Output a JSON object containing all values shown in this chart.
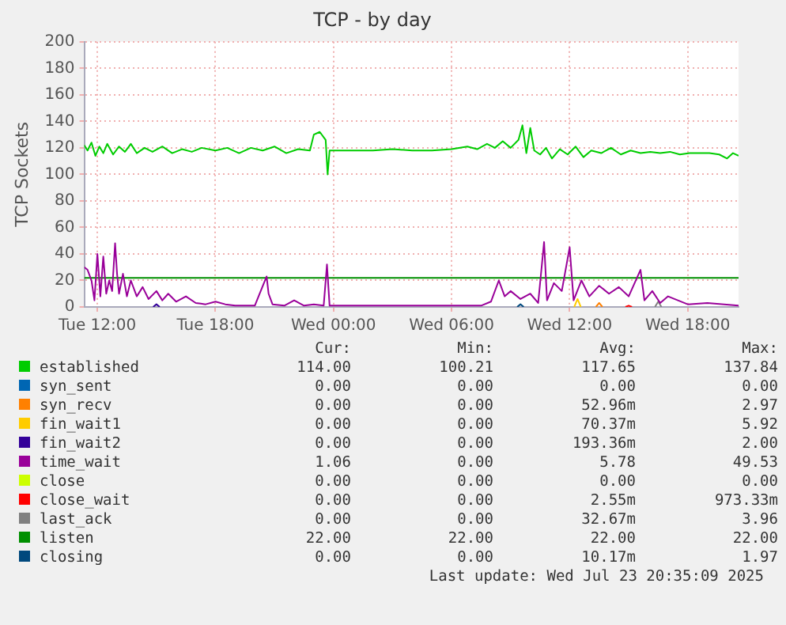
{
  "chart_data": {
    "type": "line",
    "title": "TCP - by day",
    "ylabel": "TCP Sockets",
    "xlim": [
      "2025-07-22T11:20",
      "2025-07-23T20:35"
    ],
    "xticks": [
      {
        "value": "2025-07-22T12:00",
        "label": "Tue 12:00"
      },
      {
        "value": "2025-07-22T18:00",
        "label": "Tue 18:00"
      },
      {
        "value": "2025-07-23T00:00",
        "label": "Wed 00:00"
      },
      {
        "value": "2025-07-23T06:00",
        "label": "Wed 06:00"
      },
      {
        "value": "2025-07-23T12:00",
        "label": "Wed 12:00"
      },
      {
        "value": "2025-07-23T18:00",
        "label": "Wed 18:00"
      }
    ],
    "ylim": [
      0,
      200
    ],
    "yticks": [
      0,
      20,
      40,
      60,
      80,
      100,
      120,
      140,
      160,
      180,
      200
    ],
    "grid": true,
    "legend": "bottom",
    "marker": "none",
    "line_style": "solid",
    "series": [
      {
        "name": "established",
        "color": "#00cc00",
        "x": [
          "2025-07-22T11:20",
          "2025-07-22T11:30",
          "2025-07-22T11:42",
          "2025-07-22T11:54",
          "2025-07-22T12:06",
          "2025-07-22T12:18",
          "2025-07-22T12:30",
          "2025-07-22T12:48",
          "2025-07-22T13:06",
          "2025-07-22T13:24",
          "2025-07-22T13:42",
          "2025-07-22T14:00",
          "2025-07-22T14:24",
          "2025-07-22T14:48",
          "2025-07-22T15:18",
          "2025-07-22T15:48",
          "2025-07-22T16:18",
          "2025-07-22T16:48",
          "2025-07-22T17:18",
          "2025-07-22T18:00",
          "2025-07-22T18:36",
          "2025-07-22T19:12",
          "2025-07-22T19:48",
          "2025-07-22T20:24",
          "2025-07-22T21:00",
          "2025-07-22T21:36",
          "2025-07-22T22:12",
          "2025-07-22T22:48",
          "2025-07-22T23:00",
          "2025-07-22T23:18",
          "2025-07-22T23:36",
          "2025-07-22T23:42",
          "2025-07-22T23:48",
          "2025-07-23T00:00",
          "2025-07-23T01:00",
          "2025-07-23T02:00",
          "2025-07-23T03:00",
          "2025-07-23T04:00",
          "2025-07-23T05:00",
          "2025-07-23T06:00",
          "2025-07-23T06:48",
          "2025-07-23T07:18",
          "2025-07-23T07:48",
          "2025-07-23T08:12",
          "2025-07-23T08:36",
          "2025-07-23T09:00",
          "2025-07-23T09:24",
          "2025-07-23T09:36",
          "2025-07-23T09:48",
          "2025-07-23T10:00",
          "2025-07-23T10:12",
          "2025-07-23T10:30",
          "2025-07-23T10:48",
          "2025-07-23T11:06",
          "2025-07-23T11:30",
          "2025-07-23T11:54",
          "2025-07-23T12:18",
          "2025-07-23T12:42",
          "2025-07-23T13:06",
          "2025-07-23T13:36",
          "2025-07-23T14:06",
          "2025-07-23T14:36",
          "2025-07-23T15:06",
          "2025-07-23T15:36",
          "2025-07-23T16:06",
          "2025-07-23T16:36",
          "2025-07-23T17:06",
          "2025-07-23T17:36",
          "2025-07-23T18:06",
          "2025-07-23T18:36",
          "2025-07-23T19:06",
          "2025-07-23T19:36",
          "2025-07-23T20:00",
          "2025-07-23T20:18",
          "2025-07-23T20:35"
        ],
        "values": [
          122,
          118,
          124,
          114,
          121,
          116,
          123,
          115,
          121,
          117,
          123,
          116,
          120,
          117,
          121,
          116,
          119,
          117,
          120,
          118,
          120,
          116,
          120,
          118,
          121,
          116,
          119,
          118,
          130,
          132,
          126,
          100,
          118,
          118,
          118,
          118,
          119,
          118,
          118,
          119,
          121,
          119,
          123,
          120,
          125,
          120,
          126,
          137,
          116,
          135,
          118,
          115,
          120,
          112,
          119,
          115,
          121,
          113,
          118,
          116,
          120,
          115,
          118,
          116,
          117,
          116,
          117,
          115,
          116,
          116,
          116,
          115,
          112,
          116,
          114
        ]
      },
      {
        "name": "syn_sent",
        "color": "#0066b3"
      },
      {
        "name": "syn_recv",
        "color": "#ff8000",
        "x": [
          "2025-07-23T13:20",
          "2025-07-23T13:30",
          "2025-07-23T13:40"
        ],
        "values": [
          0,
          3,
          0
        ]
      },
      {
        "name": "fin_wait1",
        "color": "#ffcc00",
        "x": [
          "2025-07-23T12:14",
          "2025-07-23T12:24",
          "2025-07-23T12:34"
        ],
        "values": [
          0,
          6,
          0
        ]
      },
      {
        "name": "fin_wait2",
        "color": "#330099",
        "x": [
          "2025-07-22T14:50",
          "2025-07-22T15:00",
          "2025-07-22T15:10"
        ],
        "values": [
          0,
          2,
          0
        ]
      },
      {
        "name": "time_wait",
        "color": "#990099",
        "x": [
          "2025-07-22T11:20",
          "2025-07-22T11:30",
          "2025-07-22T11:42",
          "2025-07-22T11:51",
          "2025-07-22T12:00",
          "2025-07-22T12:09",
          "2025-07-22T12:18",
          "2025-07-22T12:27",
          "2025-07-22T12:36",
          "2025-07-22T12:45",
          "2025-07-22T12:54",
          "2025-07-22T13:00",
          "2025-07-22T13:06",
          "2025-07-22T13:18",
          "2025-07-22T13:30",
          "2025-07-22T13:42",
          "2025-07-22T14:00",
          "2025-07-22T14:18",
          "2025-07-22T14:36",
          "2025-07-22T15:00",
          "2025-07-22T15:18",
          "2025-07-22T15:36",
          "2025-07-22T16:00",
          "2025-07-22T16:30",
          "2025-07-22T17:00",
          "2025-07-22T17:30",
          "2025-07-22T18:00",
          "2025-07-22T18:30",
          "2025-07-22T19:00",
          "2025-07-22T20:00",
          "2025-07-22T20:36",
          "2025-07-22T20:42",
          "2025-07-22T20:54",
          "2025-07-22T21:30",
          "2025-07-22T22:00",
          "2025-07-22T22:30",
          "2025-07-22T23:00",
          "2025-07-22T23:30",
          "2025-07-22T23:40",
          "2025-07-22T23:48",
          "2025-07-23T01:00",
          "2025-07-23T04:00",
          "2025-07-23T06:00",
          "2025-07-23T07:30",
          "2025-07-23T08:00",
          "2025-07-23T08:24",
          "2025-07-23T08:42",
          "2025-07-23T09:00",
          "2025-07-23T09:30",
          "2025-07-23T10:00",
          "2025-07-23T10:24",
          "2025-07-23T10:42",
          "2025-07-23T10:51",
          "2025-07-23T11:12",
          "2025-07-23T11:36",
          "2025-07-23T12:00",
          "2025-07-23T12:12",
          "2025-07-23T12:36",
          "2025-07-23T13:00",
          "2025-07-23T13:30",
          "2025-07-23T14:00",
          "2025-07-23T14:30",
          "2025-07-23T15:00",
          "2025-07-23T15:36",
          "2025-07-23T15:48",
          "2025-07-23T16:12",
          "2025-07-23T16:36",
          "2025-07-23T17:00",
          "2025-07-23T18:00",
          "2025-07-23T19:00",
          "2025-07-23T20:35"
        ],
        "values": [
          30,
          28,
          20,
          5,
          40,
          8,
          38,
          10,
          20,
          12,
          48,
          25,
          10,
          25,
          8,
          20,
          8,
          15,
          6,
          12,
          5,
          10,
          4,
          8,
          3,
          2,
          4,
          2,
          1,
          1,
          23,
          10,
          2,
          1,
          5,
          1,
          2,
          1,
          32,
          1,
          1,
          1,
          1,
          1,
          4,
          20,
          8,
          12,
          6,
          10,
          3,
          49,
          5,
          18,
          12,
          45,
          5,
          20,
          8,
          16,
          10,
          15,
          8,
          28,
          5,
          12,
          3,
          8,
          2,
          3,
          1
        ]
      },
      {
        "name": "close",
        "color": "#ccff00"
      },
      {
        "name": "close_wait",
        "color": "#ff0000",
        "x": [
          "2025-07-23T14:50",
          "2025-07-23T15:00",
          "2025-07-23T15:10"
        ],
        "values": [
          0,
          1,
          0
        ]
      },
      {
        "name": "last_ack",
        "color": "#808080",
        "x": [
          "2025-07-23T16:20",
          "2025-07-23T16:30",
          "2025-07-23T16:40"
        ],
        "values": [
          0,
          4,
          0
        ]
      },
      {
        "name": "listen",
        "color": "#008f00",
        "x": [
          "2025-07-22T11:20",
          "2025-07-23T20:35"
        ],
        "values": [
          22,
          22
        ]
      },
      {
        "name": "closing",
        "color": "#00487d",
        "x": [
          "2025-07-23T09:20",
          "2025-07-23T09:30",
          "2025-07-23T09:40"
        ],
        "values": [
          0,
          2,
          0
        ]
      }
    ],
    "annotations": [
      "Cur:",
      "Min:",
      "Avg:",
      "Max:",
      "114.00",
      "100.21",
      "117.65",
      "137.84",
      "0.00",
      "0.00",
      "0.00",
      "0.00",
      "0.00",
      "0.00",
      "52.96m",
      "2.97",
      "0.00",
      "0.00",
      "70.37m",
      "5.92",
      "0.00",
      "0.00",
      "193.36m",
      "2.00",
      "1.06",
      "0.00",
      "5.78",
      "49.53",
      "0.00",
      "0.00",
      "0.00",
      "0.00",
      "0.00",
      "0.00",
      "2.55m",
      "973.33m",
      "0.00",
      "0.00",
      "32.67m",
      "3.96",
      "22.00",
      "22.00",
      "22.00",
      "22.00",
      "0.00",
      "0.00",
      "10.17m",
      "1.97",
      "Last update: Wed Jul 23 20:35:09 2025"
    ]
  }
}
